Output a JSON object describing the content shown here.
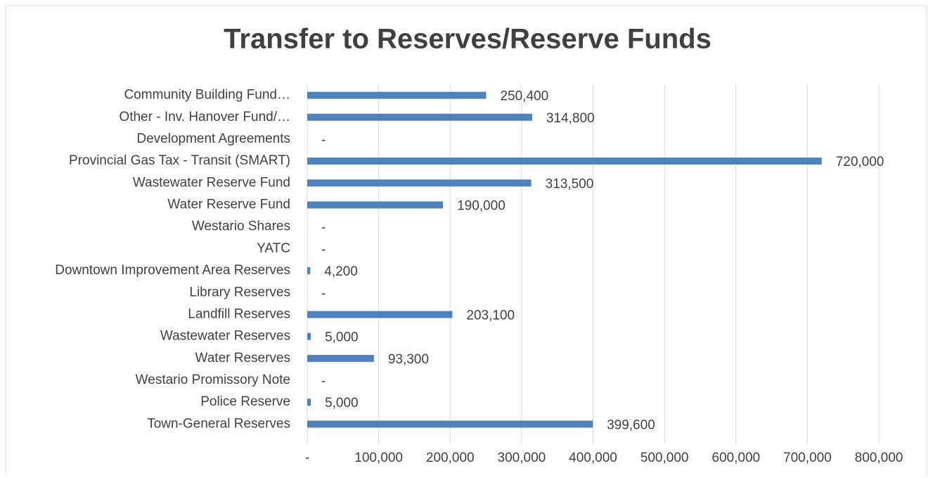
{
  "chart_data": {
    "type": "barh",
    "title": "Transfer to Reserves/Reserve Funds",
    "categories": [
      "Community Building Fund…",
      "Other - Inv. Hanover Fund/…",
      "Development Agreements",
      "Provincial Gas Tax - Transit (SMART)",
      "Wastewater Reserve Fund",
      "Water Reserve Fund",
      "Westario Shares",
      "YATC",
      "Downtown Improvement Area Reserves",
      "Library Reserves",
      "Landfill Reserves",
      "Wastewater Reserves",
      "Water Reserves",
      "Westario Promissory Note",
      "Police Reserve",
      "Town-General Reserves"
    ],
    "values": [
      250400,
      314800,
      0,
      720000,
      313500,
      190000,
      0,
      0,
      4200,
      0,
      203100,
      5000,
      93300,
      0,
      5000,
      399600
    ],
    "value_labels": [
      "250,400",
      "314,800",
      "-",
      "720,000",
      "313,500",
      "190,000",
      "-",
      "-",
      "4,200",
      "-",
      "203,100",
      "5,000",
      "93,300",
      "-",
      "5,000",
      "399,600"
    ],
    "color": "#4f81bd",
    "xlim": [
      0,
      800000
    ],
    "xticks": [
      {
        "value": 0,
        "label": "-"
      },
      {
        "value": 100000,
        "label": "100,000"
      },
      {
        "value": 200000,
        "label": "200,000"
      },
      {
        "value": 300000,
        "label": "300,000"
      },
      {
        "value": 400000,
        "label": "400,000"
      },
      {
        "value": 500000,
        "label": "500,000"
      },
      {
        "value": 600000,
        "label": "600,000"
      },
      {
        "value": 700000,
        "label": "700,000"
      },
      {
        "value": 800000,
        "label": "800,000"
      }
    ],
    "grid": true
  }
}
